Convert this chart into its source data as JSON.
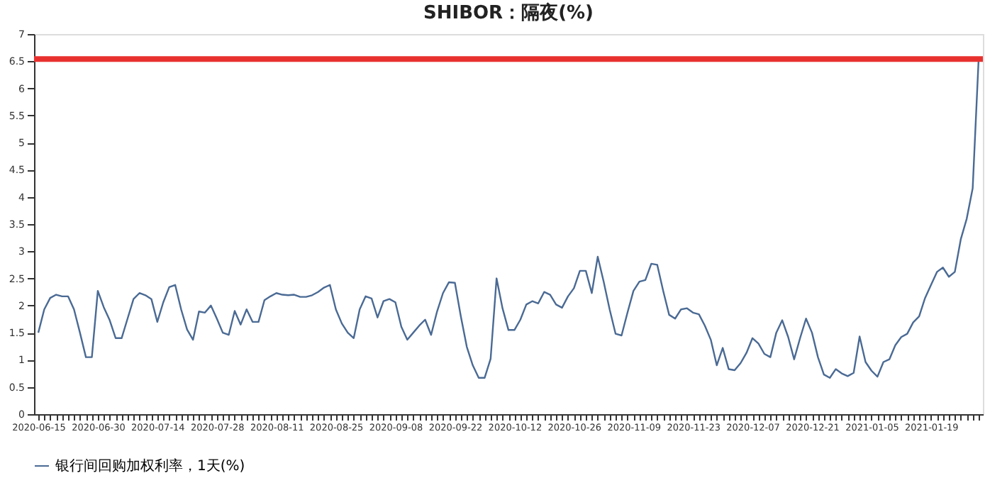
{
  "chart_data": {
    "type": "line",
    "title": "SHIBOR：隔夜(%)",
    "categories": [
      "2020-06-15",
      null,
      null,
      null,
      null,
      null,
      null,
      null,
      null,
      null,
      "2020-06-30",
      null,
      null,
      null,
      null,
      null,
      null,
      null,
      null,
      null,
      "2020-07-14",
      null,
      null,
      null,
      null,
      null,
      null,
      null,
      null,
      null,
      "2020-07-28",
      null,
      null,
      null,
      null,
      null,
      null,
      null,
      null,
      null,
      "2020-08-11",
      null,
      null,
      null,
      null,
      null,
      null,
      null,
      null,
      null,
      "2020-08-25",
      null,
      null,
      null,
      null,
      null,
      null,
      null,
      null,
      null,
      "2020-09-08",
      null,
      null,
      null,
      null,
      null,
      null,
      null,
      null,
      null,
      "2020-09-22",
      null,
      null,
      null,
      null,
      null,
      null,
      null,
      null,
      null,
      "2020-10-12",
      null,
      null,
      null,
      null,
      null,
      null,
      null,
      null,
      null,
      "2020-10-26",
      null,
      null,
      null,
      null,
      null,
      null,
      null,
      null,
      null,
      "2020-11-09",
      null,
      null,
      null,
      null,
      null,
      null,
      null,
      null,
      null,
      "2020-11-23",
      null,
      null,
      null,
      null,
      null,
      null,
      null,
      null,
      null,
      "2020-12-07",
      null,
      null,
      null,
      null,
      null,
      null,
      null,
      null,
      null,
      "2020-12-21",
      null,
      null,
      null,
      null,
      null,
      null,
      null,
      null,
      null,
      "2021-01-05",
      null,
      null,
      null,
      null,
      null,
      null,
      null,
      null,
      null,
      "2021-01-19",
      null,
      null,
      null,
      null,
      null,
      null,
      null,
      null
    ],
    "series": [
      {
        "name": "银行间回购加权利率，1天(%)",
        "color": "#4a6a94",
        "values": [
          1.5,
          1.93,
          2.14,
          2.2,
          2.17,
          2.17,
          1.93,
          1.5,
          1.05,
          1.05,
          2.27,
          1.97,
          1.73,
          1.4,
          1.4,
          1.76,
          2.12,
          2.23,
          2.19,
          2.12,
          1.7,
          2.06,
          2.34,
          2.38,
          1.93,
          1.56,
          1.37,
          1.89,
          1.87,
          2.0,
          1.76,
          1.5,
          1.46,
          1.9,
          1.65,
          1.93,
          1.7,
          1.7,
          2.1,
          2.17,
          2.23,
          2.2,
          2.19,
          2.2,
          2.16,
          2.16,
          2.19,
          2.25,
          2.33,
          2.38,
          1.93,
          1.67,
          1.5,
          1.4,
          1.93,
          2.17,
          2.13,
          1.78,
          2.08,
          2.12,
          2.06,
          1.61,
          1.37,
          1.5,
          1.63,
          1.74,
          1.46,
          1.89,
          2.23,
          2.43,
          2.42,
          1.8,
          1.24,
          0.9,
          0.67,
          0.67,
          1.02,
          2.5,
          1.95,
          1.55,
          1.55,
          1.74,
          2.02,
          2.08,
          2.04,
          2.25,
          2.2,
          2.02,
          1.96,
          2.17,
          2.32,
          2.64,
          2.64,
          2.23,
          2.9,
          2.44,
          1.93,
          1.48,
          1.45,
          1.87,
          2.27,
          2.44,
          2.47,
          2.77,
          2.75,
          2.27,
          1.83,
          1.76,
          1.93,
          1.95,
          1.87,
          1.84,
          1.63,
          1.37,
          0.9,
          1.22,
          0.83,
          0.81,
          0.94,
          1.13,
          1.4,
          1.3,
          1.11,
          1.05,
          1.5,
          1.73,
          1.42,
          1.01,
          1.4,
          1.76,
          1.5,
          1.05,
          0.73,
          0.67,
          0.83,
          0.75,
          0.7,
          0.76,
          1.43,
          0.96,
          0.8,
          0.69,
          0.96,
          1.01,
          1.27,
          1.42,
          1.48,
          1.69,
          1.8,
          2.14,
          2.38,
          2.62,
          2.7,
          2.53,
          2.62,
          3.22,
          3.6,
          4.16,
          6.54
        ]
      }
    ],
    "ylim": [
      0,
      7
    ],
    "yticks": [
      0,
      0.5,
      1,
      1.5,
      2,
      2.5,
      3,
      3.5,
      4,
      4.5,
      5,
      5.5,
      6,
      6.5,
      7
    ],
    "ref_lines": [
      {
        "axis": "y",
        "value": 6.54,
        "color": "#e8312f"
      }
    ],
    "grid": false,
    "legend": "bottom",
    "marker": "none",
    "line_style": "solid"
  }
}
